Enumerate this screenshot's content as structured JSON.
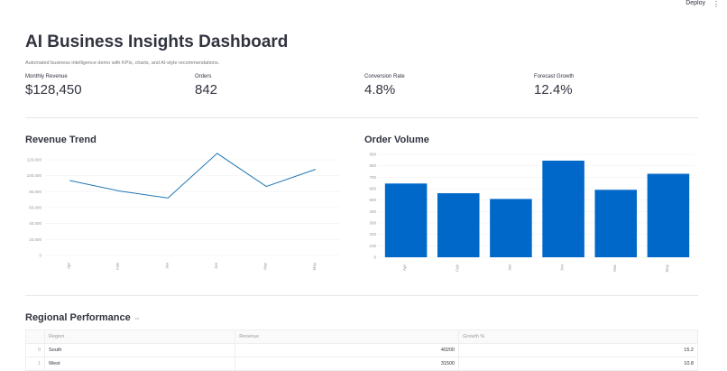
{
  "header": {
    "deploy": "Deploy",
    "menu_icon": "vertical-dots-icon"
  },
  "title": "AI Business Insights Dashboard",
  "subtitle": "Automated business intelligence demo with KPIs, charts, and AI-style recommendations.",
  "kpis": [
    {
      "label": "Monthly Revenue",
      "value": "$128,450"
    },
    {
      "label": "Orders",
      "value": "842"
    },
    {
      "label": "Conversion Rate",
      "value": "4.8%"
    },
    {
      "label": "Forecast Growth",
      "value": "12.4%"
    }
  ],
  "revenue_title": "Revenue Trend",
  "orders_title": "Order Volume",
  "chart_data": [
    {
      "type": "line",
      "categories": [
        "Apr",
        "Feb",
        "Jan",
        "Jun",
        "Mar",
        "May"
      ],
      "values": [
        94000,
        81000,
        72000,
        128000,
        86500,
        108000
      ],
      "yticks": [
        "0",
        "20,000",
        "40,000",
        "60,000",
        "80,000",
        "100,000",
        "120,000"
      ],
      "ylim": [
        0,
        120000
      ],
      "grid": true,
      "color": "#1f77b4"
    },
    {
      "type": "bar",
      "categories": [
        "Apr",
        "Feb",
        "Jan",
        "Jun",
        "Mar",
        "May"
      ],
      "values": [
        645,
        560,
        510,
        845,
        590,
        730
      ],
      "yticks": [
        "0",
        "100",
        "200",
        "300",
        "400",
        "500",
        "600",
        "700",
        "800",
        "900"
      ],
      "ylim": [
        0,
        900
      ],
      "grid": true,
      "color": "#0068c9"
    }
  ],
  "regional": {
    "title": "Regional Performance",
    "link_icon": "link-icon",
    "columns": [
      "Region",
      "Revenue",
      "Growth %"
    ],
    "rows": [
      {
        "index": "0",
        "region": "South",
        "revenue": "40200",
        "growth": "15.2"
      },
      {
        "index": "1",
        "region": "West",
        "revenue": "31500",
        "growth": "10.8"
      }
    ]
  }
}
